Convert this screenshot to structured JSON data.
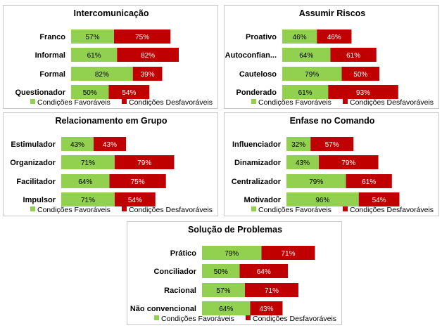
{
  "colors": {
    "favoravel": "#92D050",
    "desfavoravel": "#C00000"
  },
  "chart_data": [
    {
      "type": "bar",
      "orientation": "horizontal",
      "stacked": true,
      "title": "Intercomunicação",
      "categories": [
        "Franco",
        "Informal",
        "Formal",
        "Questionador"
      ],
      "series": [
        {
          "name": "Condições Favoráveis",
          "values": [
            57,
            61,
            82,
            50
          ]
        },
        {
          "name": "Condições Desfavoráveis",
          "values": [
            75,
            82,
            39,
            54
          ]
        }
      ],
      "value_labels": [
        "%"
      ],
      "legend": "bottom"
    },
    {
      "type": "bar",
      "orientation": "horizontal",
      "stacked": true,
      "title": "Assumir Riscos",
      "categories": [
        "Proativo",
        "Autoconfian...",
        "Cauteloso",
        "Ponderado"
      ],
      "series": [
        {
          "name": "Condições Favoráveis",
          "values": [
            46,
            64,
            79,
            61
          ]
        },
        {
          "name": "Condições Desfavoráveis",
          "values": [
            46,
            61,
            50,
            93
          ]
        }
      ],
      "legend": "bottom"
    },
    {
      "type": "bar",
      "orientation": "horizontal",
      "stacked": true,
      "title": "Relacionamento em Grupo",
      "categories": [
        "Estimulador",
        "Organizador",
        "Facilitador",
        "Impulsor"
      ],
      "series": [
        {
          "name": "Condições Favoráveis",
          "values": [
            43,
            71,
            64,
            71
          ]
        },
        {
          "name": "Condições Desfavoráveis",
          "values": [
            43,
            79,
            75,
            54
          ]
        }
      ],
      "legend": "bottom"
    },
    {
      "type": "bar",
      "orientation": "horizontal",
      "stacked": true,
      "title": "Enfase no Comando",
      "categories": [
        "Influenciador",
        "Dinamizador",
        "Centralizador",
        "Motivador"
      ],
      "series": [
        {
          "name": "Condições Favoráveis",
          "values": [
            32,
            43,
            79,
            96
          ]
        },
        {
          "name": "Condições Desfavoráveis",
          "values": [
            57,
            79,
            61,
            54
          ]
        }
      ],
      "legend": "bottom"
    },
    {
      "type": "bar",
      "orientation": "horizontal",
      "stacked": true,
      "title": "Solução de Problemas",
      "categories": [
        "Prático",
        "Conciliador",
        "Racional",
        "Não convencional"
      ],
      "series": [
        {
          "name": "Condições Favoráveis",
          "values": [
            79,
            50,
            57,
            64
          ]
        },
        {
          "name": "Condições Desfavoráveis",
          "values": [
            71,
            64,
            71,
            43
          ]
        }
      ],
      "legend": "bottom"
    }
  ]
}
